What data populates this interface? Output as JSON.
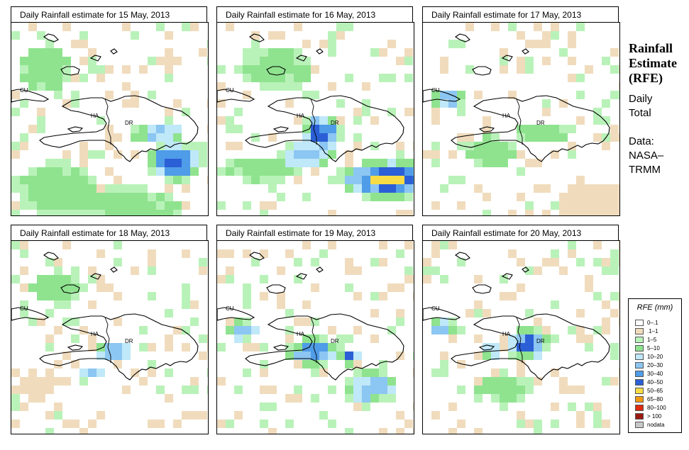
{
  "panels": [
    {
      "title": "Daily Rainfall estimate for  15 May, 2013"
    },
    {
      "title": "Daily Rainfall estimate for  16 May, 2013"
    },
    {
      "title": "Daily Rainfall estimate for  17 May, 2013"
    },
    {
      "title": "Daily Rainfall estimate for  18 May, 2013"
    },
    {
      "title": "Daily Rainfall estimate for  19 May, 2013"
    },
    {
      "title": "Daily Rainfall estimate for  20 May, 2013"
    }
  ],
  "map_labels": {
    "cuba": "CU",
    "haiti": "HA",
    "dominican_republic": "DR"
  },
  "sidebar": {
    "title_lines": [
      "Rainfall",
      "Estimate",
      "(RFE)"
    ],
    "period_lines": [
      "Daily",
      "Total"
    ],
    "source_lines": [
      "Data:",
      "NASA–",
      "TRMM"
    ]
  },
  "legend": {
    "title": "RFE (mm)",
    "items": [
      {
        "label": "0–.1",
        "color": "#ffffff"
      },
      {
        "label": ".1–1",
        "color": "#f0dcbd"
      },
      {
        "label": "1–5",
        "color": "#b9f2b9"
      },
      {
        "label": "5–10",
        "color": "#8fe38f"
      },
      {
        "label": "10–20",
        "color": "#bfe8f8"
      },
      {
        "label": "20–30",
        "color": "#8cc6f2"
      },
      {
        "label": "30–40",
        "color": "#4f9ce8"
      },
      {
        "label": "40–50",
        "color": "#2b5fd6"
      },
      {
        "label": "50–65",
        "color": "#f7dc45"
      },
      {
        "label": "65–80",
        "color": "#f39a14"
      },
      {
        "label": "80–100",
        "color": "#dd2a10"
      },
      {
        "label": "> 100",
        "color": "#9a1a12"
      },
      {
        "label": "nodata",
        "color": "#c8c8c8"
      }
    ]
  }
}
